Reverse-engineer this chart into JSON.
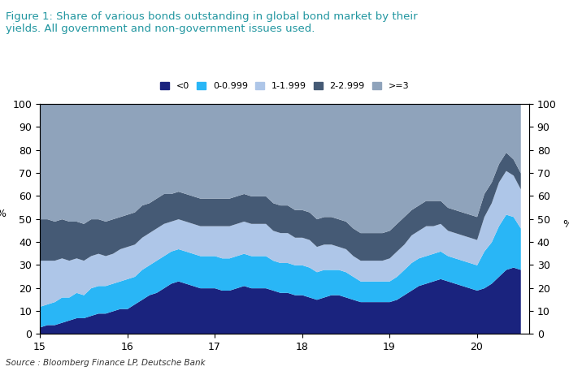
{
  "title": "Figure 1: Share of various bonds outstanding in global bond market by their\nyields. All government and non-government issues used.",
  "title_color": "#2196a0",
  "source": "Source : Bloomberg Finance LP, Deutsche Bank",
  "colors": {
    "lt0": "#1a237e",
    "b0_1": "#29b6f6",
    "b1_2": "#aec6e8",
    "b2_3": "#455a75",
    "gte3": "#8fa3bb"
  },
  "legend_labels": [
    "<0",
    "0-0.999",
    "1-1.999",
    "2-2.999",
    ">=3"
  ],
  "x_start": 2015.0,
  "x_end": 2020.6,
  "x_ticks": [
    15,
    16,
    17,
    18,
    19,
    20
  ],
  "x_tick_positions": [
    2015.0,
    2016.0,
    2017.0,
    2018.0,
    2019.0,
    2020.0
  ],
  "ylim": [
    0,
    100
  ],
  "yticks": [
    0,
    10,
    20,
    30,
    40,
    50,
    60,
    70,
    80,
    90,
    100
  ],
  "t": [
    2015.0,
    2015.083,
    2015.167,
    2015.25,
    2015.333,
    2015.417,
    2015.5,
    2015.583,
    2015.667,
    2015.75,
    2015.833,
    2015.917,
    2016.0,
    2016.083,
    2016.167,
    2016.25,
    2016.333,
    2016.417,
    2016.5,
    2016.583,
    2016.667,
    2016.75,
    2016.833,
    2016.917,
    2017.0,
    2017.083,
    2017.167,
    2017.25,
    2017.333,
    2017.417,
    2017.5,
    2017.583,
    2017.667,
    2017.75,
    2017.833,
    2017.917,
    2018.0,
    2018.083,
    2018.167,
    2018.25,
    2018.333,
    2018.417,
    2018.5,
    2018.583,
    2018.667,
    2018.75,
    2018.833,
    2018.917,
    2019.0,
    2019.083,
    2019.167,
    2019.25,
    2019.333,
    2019.417,
    2019.5,
    2019.583,
    2019.667,
    2019.75,
    2019.833,
    2019.917,
    2020.0,
    2020.083,
    2020.167,
    2020.25,
    2020.333,
    2020.417,
    2020.5
  ],
  "lt0": [
    3,
    4,
    4,
    5,
    6,
    7,
    7,
    8,
    9,
    9,
    10,
    11,
    11,
    13,
    15,
    17,
    18,
    20,
    22,
    23,
    22,
    21,
    20,
    20,
    20,
    19,
    19,
    20,
    21,
    20,
    20,
    20,
    19,
    18,
    18,
    17,
    17,
    16,
    15,
    16,
    17,
    17,
    16,
    15,
    14,
    14,
    14,
    14,
    14,
    15,
    17,
    19,
    21,
    22,
    23,
    24,
    23,
    22,
    21,
    20,
    19,
    20,
    22,
    25,
    28,
    29,
    28
  ],
  "b0_1": [
    9,
    9,
    10,
    11,
    10,
    11,
    10,
    12,
    12,
    12,
    12,
    12,
    13,
    12,
    13,
    13,
    14,
    14,
    14,
    14,
    14,
    14,
    14,
    14,
    14,
    14,
    14,
    14,
    14,
    14,
    14,
    14,
    13,
    13,
    13,
    13,
    13,
    13,
    12,
    12,
    11,
    11,
    11,
    10,
    9,
    9,
    9,
    9,
    9,
    10,
    11,
    12,
    12,
    12,
    12,
    12,
    11,
    11,
    11,
    11,
    11,
    16,
    18,
    22,
    24,
    22,
    18
  ],
  "b1_2": [
    20,
    19,
    18,
    17,
    16,
    15,
    15,
    14,
    14,
    13,
    13,
    14,
    14,
    14,
    14,
    14,
    14,
    14,
    13,
    13,
    13,
    13,
    13,
    13,
    13,
    14,
    14,
    14,
    14,
    14,
    14,
    14,
    13,
    13,
    13,
    12,
    12,
    12,
    11,
    11,
    11,
    10,
    10,
    9,
    9,
    9,
    9,
    9,
    10,
    11,
    11,
    12,
    12,
    13,
    12,
    12,
    11,
    11,
    11,
    11,
    11,
    15,
    17,
    19,
    19,
    18,
    17
  ],
  "b2_3": [
    18,
    18,
    17,
    17,
    17,
    16,
    16,
    16,
    15,
    15,
    15,
    14,
    14,
    14,
    14,
    13,
    13,
    13,
    12,
    12,
    12,
    12,
    12,
    12,
    12,
    12,
    12,
    12,
    12,
    12,
    12,
    12,
    12,
    12,
    12,
    12,
    12,
    12,
    12,
    12,
    12,
    12,
    12,
    12,
    12,
    12,
    12,
    12,
    12,
    12,
    12,
    11,
    11,
    11,
    11,
    10,
    10,
    10,
    10,
    10,
    10,
    10,
    9,
    8,
    8,
    7,
    7
  ],
  "gte3": [
    50,
    50,
    51,
    50,
    51,
    51,
    52,
    50,
    50,
    51,
    50,
    49,
    48,
    47,
    44,
    43,
    41,
    39,
    39,
    38,
    39,
    40,
    41,
    41,
    41,
    41,
    41,
    40,
    39,
    40,
    40,
    40,
    43,
    44,
    44,
    46,
    46,
    47,
    50,
    49,
    49,
    50,
    51,
    54,
    56,
    56,
    56,
    56,
    55,
    52,
    49,
    46,
    44,
    42,
    42,
    42,
    45,
    46,
    47,
    48,
    49,
    39,
    34,
    26,
    21,
    24,
    30
  ]
}
